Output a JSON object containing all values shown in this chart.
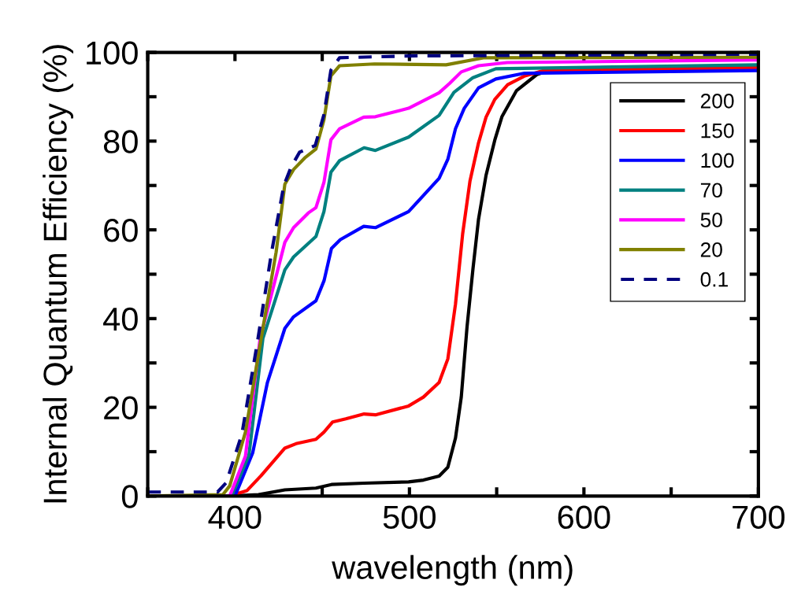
{
  "chart_data": {
    "type": "line",
    "xlabel": "wavelength (nm)",
    "ylabel": "Internal Quantum Efficiency (%)",
    "xlim": [
      350,
      700
    ],
    "ylim": [
      0,
      100
    ],
    "xticks": [
      {
        "value": 350,
        "label": null
      },
      400,
      {
        "value": 450,
        "label": null
      },
      500,
      {
        "value": 550,
        "label": null
      },
      600,
      {
        "value": 650,
        "label": null
      },
      700
    ],
    "yticks": [
      0,
      {
        "value": 10,
        "label": null
      },
      20,
      {
        "value": 30,
        "label": null
      },
      40,
      {
        "value": 50,
        "label": null
      },
      60,
      {
        "value": 70,
        "label": null
      },
      80,
      {
        "value": 90,
        "label": null
      },
      100
    ],
    "grid": false,
    "legend": "top right",
    "marker": "none",
    "series": [
      {
        "name": "200",
        "color": "#000000",
        "x": [
          350,
          397,
          413.5,
          428.6,
          446.4,
          455.3,
          474,
          499.5,
          508,
          517,
          522,
          526.4,
          529.7,
          533,
          536.4,
          539.6,
          543.9,
          548.9,
          553,
          561.4,
          573,
          581.4,
          700
        ],
        "values": [
          0,
          0,
          0.3,
          1.4,
          1.8,
          2.6,
          2.9,
          3.2,
          3.6,
          4.5,
          6.5,
          13.1,
          22.3,
          38.1,
          51.2,
          62.4,
          72.3,
          80.2,
          85.5,
          91.4,
          95,
          96.1,
          96.5
        ]
      },
      {
        "name": "150",
        "color": "#ff0000",
        "x": [
          350,
          397,
          406.8,
          415,
          428.6,
          435,
          446.4,
          451,
          456,
          463.5,
          474,
          480.5,
          499.5,
          508,
          517,
          522,
          526.4,
          530.5,
          534.7,
          539.6,
          543.9,
          548.9,
          556.3,
          566.2,
          577.9,
          700
        ],
        "values": [
          0,
          0,
          1.2,
          4.6,
          10.8,
          11.8,
          12.8,
          14.4,
          16.7,
          17.4,
          18.5,
          18.3,
          20.3,
          22.3,
          25.6,
          30.9,
          43.3,
          59.1,
          71,
          79.6,
          85.4,
          89.4,
          92.7,
          94.7,
          96,
          96.5
        ]
      },
      {
        "name": "100",
        "color": "#0000ff",
        "x": [
          350,
          400,
          410.2,
          418.6,
          428.6,
          433.6,
          446.4,
          451.1,
          455.3,
          460.4,
          473.8,
          480.5,
          499.5,
          517,
          522,
          526.4,
          531.4,
          539.6,
          549.5,
          566,
          700
        ],
        "values": [
          0,
          0,
          9.8,
          25.6,
          37.8,
          40.4,
          44,
          48.6,
          55.8,
          57.8,
          60.8,
          60.5,
          64.1,
          71.6,
          75.9,
          82.8,
          87.4,
          92,
          94,
          95.3,
          95.9
        ]
      },
      {
        "name": "70",
        "color": "#008080",
        "x": [
          350,
          398,
          408,
          416,
          428.6,
          433.6,
          446.4,
          451,
          455,
          460,
          474,
          480.5,
          499.5,
          517,
          525.5,
          536.4,
          549.5,
          700
        ],
        "values": [
          0,
          0,
          9.2,
          35.5,
          51,
          53.9,
          58.5,
          64.1,
          73,
          75.6,
          78.5,
          77.9,
          80.9,
          85.8,
          91,
          94.3,
          96.3,
          97.2
        ]
      },
      {
        "name": "50",
        "color": "#ff00ff",
        "x": [
          350,
          397,
          406,
          414.4,
          428.6,
          433.6,
          442,
          446.4,
          451,
          455,
          460,
          473.8,
          480.5,
          499.5,
          517,
          523,
          529.7,
          539.6,
          556,
          700
        ],
        "values": [
          0,
          0,
          9,
          35.5,
          57.2,
          60.5,
          63.8,
          65,
          70.7,
          80.3,
          82.8,
          85.4,
          85.5,
          87.4,
          90.9,
          93,
          95.6,
          97,
          97.7,
          98.3
        ]
      },
      {
        "name": "20",
        "color": "#808000",
        "x": [
          350,
          393,
          397,
          406,
          415,
          423.6,
          428.6,
          433.6,
          440,
          446.4,
          451,
          455,
          460,
          480,
          521,
          543,
          700
        ],
        "values": [
          0,
          0.3,
          2.3,
          14.4,
          35.5,
          55,
          70.3,
          73.6,
          76.2,
          78.2,
          84.8,
          94.7,
          97,
          97.4,
          97.2,
          98.8,
          98.9
        ]
      },
      {
        "name": "0.1",
        "color": "#000080",
        "line_style": "dashed",
        "x": [
          350,
          390,
          395,
          404,
          413,
          421,
          428,
          432,
          437,
          446,
          451,
          455,
          460,
          500,
          700
        ],
        "values": [
          0.9,
          0.9,
          3,
          14,
          35,
          55,
          70,
          74,
          77.5,
          79,
          86,
          96,
          98.8,
          99.2,
          99.6
        ]
      }
    ]
  }
}
